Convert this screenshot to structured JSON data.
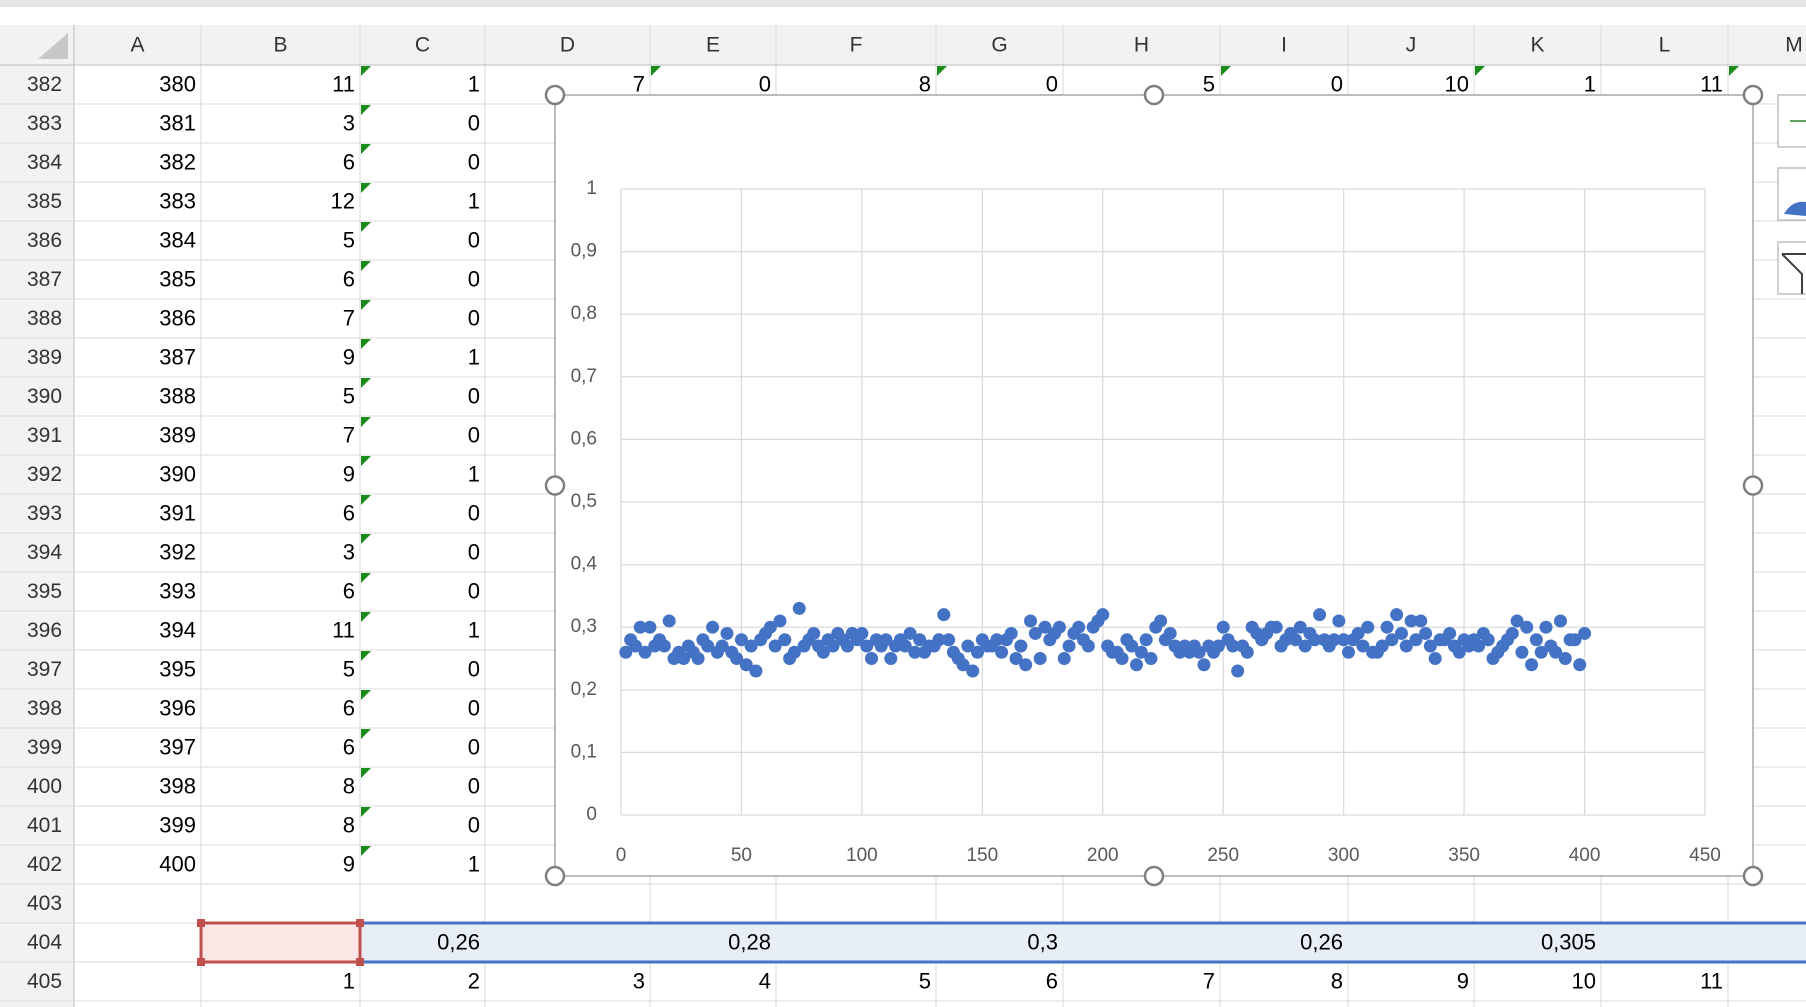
{
  "spreadsheet": {
    "columns": [
      "A",
      "B",
      "C",
      "D",
      "E",
      "F",
      "G",
      "H",
      "I",
      "J",
      "K",
      "L",
      "M"
    ],
    "rows": [
      {
        "header": "382",
        "cells": {
          "A": "380",
          "B": "11",
          "C": "1",
          "D": "7",
          "E": "0",
          "F": "8",
          "G": "0",
          "H": "5",
          "I": "0",
          "J": "10",
          "K": "1",
          "L": "11"
        }
      },
      {
        "header": "383",
        "cells": {
          "A": "381",
          "B": "3",
          "C": "0"
        }
      },
      {
        "header": "384",
        "cells": {
          "A": "382",
          "B": "6",
          "C": "0"
        }
      },
      {
        "header": "385",
        "cells": {
          "A": "383",
          "B": "12",
          "C": "1"
        }
      },
      {
        "header": "386",
        "cells": {
          "A": "384",
          "B": "5",
          "C": "0"
        }
      },
      {
        "header": "387",
        "cells": {
          "A": "385",
          "B": "6",
          "C": "0"
        }
      },
      {
        "header": "388",
        "cells": {
          "A": "386",
          "B": "7",
          "C": "0"
        }
      },
      {
        "header": "389",
        "cells": {
          "A": "387",
          "B": "9",
          "C": "1"
        }
      },
      {
        "header": "390",
        "cells": {
          "A": "388",
          "B": "5",
          "C": "0"
        }
      },
      {
        "header": "391",
        "cells": {
          "A": "389",
          "B": "7",
          "C": "0"
        }
      },
      {
        "header": "392",
        "cells": {
          "A": "390",
          "B": "9",
          "C": "1"
        }
      },
      {
        "header": "393",
        "cells": {
          "A": "391",
          "B": "6",
          "C": "0"
        }
      },
      {
        "header": "394",
        "cells": {
          "A": "392",
          "B": "3",
          "C": "0"
        }
      },
      {
        "header": "395",
        "cells": {
          "A": "393",
          "B": "6",
          "C": "0"
        }
      },
      {
        "header": "396",
        "cells": {
          "A": "394",
          "B": "11",
          "C": "1"
        }
      },
      {
        "header": "397",
        "cells": {
          "A": "395",
          "B": "5",
          "C": "0"
        }
      },
      {
        "header": "398",
        "cells": {
          "A": "396",
          "B": "6",
          "C": "0"
        }
      },
      {
        "header": "399",
        "cells": {
          "A": "397",
          "B": "6",
          "C": "0"
        }
      },
      {
        "header": "400",
        "cells": {
          "A": "398",
          "B": "8",
          "C": "0"
        }
      },
      {
        "header": "401",
        "cells": {
          "A": "399",
          "B": "8",
          "C": "0"
        }
      },
      {
        "header": "402",
        "cells": {
          "A": "400",
          "B": "9",
          "C": "1"
        }
      },
      {
        "header": "403",
        "cells": {}
      },
      {
        "header": "404",
        "cells": {
          "C": "0,26",
          "E": "0,28",
          "G": "0,3",
          "I": "0,26",
          "K": "0,305"
        }
      },
      {
        "header": "405",
        "cells": {
          "B": "1",
          "C": "2",
          "D": "3",
          "E": "4",
          "F": "5",
          "G": "6",
          "H": "7",
          "I": "8",
          "J": "9",
          "K": "10",
          "L": "11"
        }
      }
    ]
  },
  "chart_data": {
    "type": "scatter",
    "x": [
      2,
      4,
      6,
      8,
      10,
      12,
      14,
      16,
      18,
      20,
      22,
      24,
      26,
      28,
      30,
      32,
      34,
      36,
      38,
      40,
      42,
      44,
      46,
      48,
      50,
      52,
      54,
      56,
      58,
      60,
      62,
      64,
      66,
      68,
      70,
      72,
      74,
      76,
      78,
      80,
      82,
      84,
      86,
      88,
      90,
      92,
      94,
      96,
      98,
      100,
      102,
      104,
      106,
      108,
      110,
      112,
      114,
      116,
      118,
      120,
      122,
      124,
      126,
      128,
      130,
      132,
      134,
      136,
      138,
      140,
      142,
      144,
      146,
      148,
      150,
      152,
      154,
      156,
      158,
      160,
      162,
      164,
      166,
      168,
      170,
      172,
      174,
      176,
      178,
      180,
      182,
      184,
      186,
      188,
      190,
      192,
      194,
      196,
      198,
      200,
      202,
      204,
      206,
      208,
      210,
      212,
      214,
      216,
      218,
      220,
      222,
      224,
      226,
      228,
      230,
      232,
      234,
      236,
      238,
      240,
      242,
      244,
      246,
      248,
      250,
      252,
      254,
      256,
      258,
      260,
      262,
      264,
      266,
      268,
      270,
      272,
      274,
      276,
      278,
      280,
      282,
      284,
      286,
      288,
      290,
      292,
      294,
      296,
      298,
      300,
      302,
      304,
      306,
      308,
      310,
      312,
      314,
      316,
      318,
      320,
      322,
      324,
      326,
      328,
      330,
      332,
      334,
      336,
      338,
      340,
      342,
      344,
      346,
      348,
      350,
      352,
      354,
      356,
      358,
      360,
      362,
      364,
      366,
      368,
      370,
      372,
      374,
      376,
      378,
      380,
      382,
      384,
      386,
      388,
      390,
      392,
      394,
      396,
      398,
      400
    ],
    "series": [
      {
        "color": "#4472c4",
        "values": [
          0.26,
          0.28,
          0.27,
          0.3,
          0.26,
          0.3,
          0.27,
          0.28,
          0.27,
          0.31,
          0.25,
          0.26,
          0.25,
          0.27,
          0.26,
          0.25,
          0.28,
          0.27,
          0.3,
          0.26,
          0.27,
          0.29,
          0.26,
          0.25,
          0.28,
          0.24,
          0.27,
          0.23,
          0.28,
          0.29,
          0.3,
          0.27,
          0.31,
          0.28,
          0.25,
          0.26,
          0.33,
          0.27,
          0.28,
          0.29,
          0.27,
          0.26,
          0.28,
          0.27,
          0.29,
          0.28,
          0.27,
          0.29,
          0.28,
          0.29,
          0.27,
          0.25,
          0.28,
          0.27,
          0.28,
          0.25,
          0.27,
          0.28,
          0.27,
          0.29,
          0.26,
          0.28,
          0.26,
          0.27,
          0.27,
          0.28,
          0.32,
          0.28,
          0.26,
          0.25,
          0.24,
          0.27,
          0.23,
          0.26,
          0.28,
          0.27,
          0.27,
          0.28,
          0.26,
          0.28,
          0.29,
          0.25,
          0.27,
          0.24,
          0.31,
          0.29,
          0.25,
          0.3,
          0.28,
          0.29,
          0.3,
          0.25,
          0.27,
          0.29,
          0.3,
          0.28,
          0.27,
          0.3,
          0.31,
          0.32,
          0.27,
          0.26,
          0.26,
          0.25,
          0.28,
          0.27,
          0.24,
          0.26,
          0.28,
          0.25,
          0.3,
          0.31,
          0.28,
          0.29,
          0.27,
          0.26,
          0.27,
          0.26,
          0.27,
          0.26,
          0.24,
          0.27,
          0.26,
          0.27,
          0.3,
          0.28,
          0.27,
          0.23,
          0.27,
          0.26,
          0.3,
          0.29,
          0.28,
          0.29,
          0.3,
          0.3,
          0.27,
          0.28,
          0.29,
          0.28,
          0.3,
          0.27,
          0.29,
          0.28,
          0.32,
          0.28,
          0.27,
          0.28,
          0.31,
          0.28,
          0.26,
          0.28,
          0.29,
          0.27,
          0.3,
          0.26,
          0.26,
          0.27,
          0.3,
          0.28,
          0.32,
          0.29,
          0.27,
          0.31,
          0.28,
          0.31,
          0.29,
          0.27,
          0.25,
          0.28,
          0.28,
          0.29,
          0.27,
          0.26,
          0.28,
          0.27,
          0.28,
          0.27,
          0.29,
          0.28,
          0.25,
          0.26,
          0.27,
          0.28,
          0.29,
          0.31,
          0.26,
          0.3,
          0.24,
          0.28,
          0.26,
          0.3,
          0.27,
          0.26,
          0.31,
          0.25,
          0.28,
          0.28,
          0.24,
          0.29
        ]
      }
    ],
    "xlim": [
      0,
      450
    ],
    "xticks": [
      0,
      50,
      100,
      150,
      200,
      250,
      300,
      350,
      400,
      450
    ],
    "ylim": [
      0,
      1
    ],
    "yticks": [
      0,
      {
        "value": 0.1,
        "label": "0,1"
      },
      {
        "value": 0.2,
        "label": "0,2"
      },
      {
        "value": 0.3,
        "label": "0,3"
      },
      {
        "value": 0.4,
        "label": "0,4"
      },
      {
        "value": 0.5,
        "label": "0,5"
      },
      {
        "value": 0.6,
        "label": "0,6"
      },
      {
        "value": 0.7,
        "label": "0,7"
      },
      {
        "value": 0.8,
        "label": "0,8"
      },
      {
        "value": 0.9,
        "label": "0,9"
      },
      1
    ],
    "grid": true
  }
}
